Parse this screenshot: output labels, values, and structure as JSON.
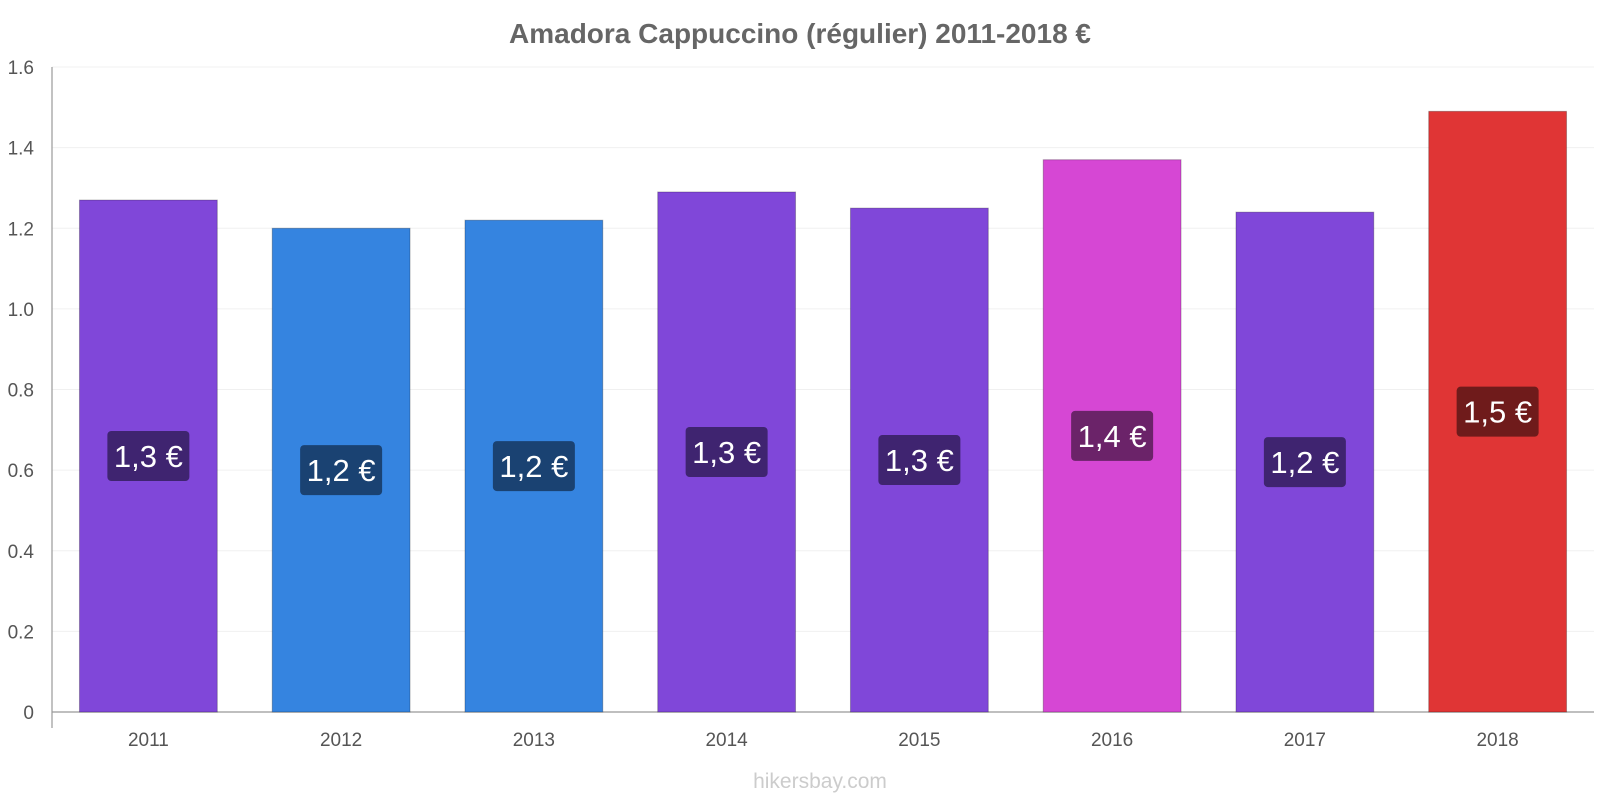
{
  "chart_data": {
    "type": "bar",
    "title": "Amadora Cappuccino (régulier) 2011-2018 €",
    "xlabel": "",
    "ylabel": "",
    "ylim": [
      0,
      1.6
    ],
    "y_ticks": [
      "0",
      "0.2",
      "0.4",
      "0.6",
      "0.8",
      "1.0",
      "1.2",
      "1.4",
      "1.6"
    ],
    "grid": true,
    "legend": "none",
    "categories": [
      "2011",
      "2012",
      "2013",
      "2014",
      "2015",
      "2016",
      "2017",
      "2018"
    ],
    "values": [
      1.27,
      1.2,
      1.22,
      1.29,
      1.25,
      1.37,
      1.24,
      1.49
    ],
    "data_labels": [
      "1,3 €",
      "1,2 €",
      "1,2 €",
      "1,3 €",
      "1,3 €",
      "1,4 €",
      "1,2 €",
      "1,5 €"
    ],
    "bar_colors": [
      "#8047d9",
      "#3584e0",
      "#3584e0",
      "#8047d9",
      "#8047d9",
      "#d647d4",
      "#8047d9",
      "#e03535"
    ],
    "label_bg_colors": [
      "#3f2470",
      "#1a4272",
      "#1a4272",
      "#3f2470",
      "#3f2470",
      "#6b2369",
      "#3f2470",
      "#6f1b1b"
    ]
  },
  "credit": "hikersbay.com"
}
